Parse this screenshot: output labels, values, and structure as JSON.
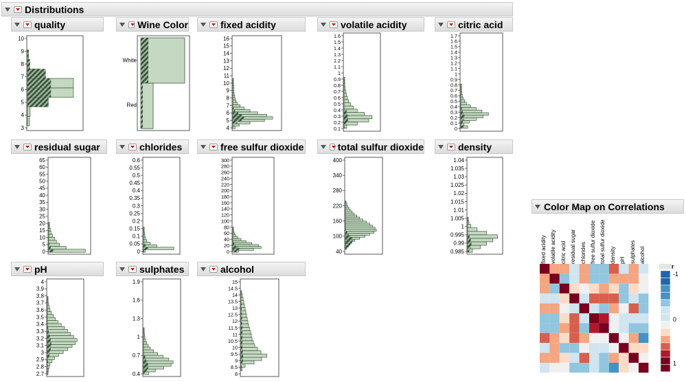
{
  "outline_title": "Distributions",
  "panels": [
    {
      "id": "quality",
      "title": "quality",
      "ticks": [
        "10",
        "9",
        "8",
        "7",
        "6",
        "5",
        "4",
        "3"
      ]
    },
    {
      "id": "wine",
      "title": "Wine Color",
      "cats": [
        "White",
        "Red"
      ]
    },
    {
      "id": "fixed",
      "title": "fixed acidity",
      "ticks": [
        "16",
        "15",
        "14",
        "13",
        "12",
        "11",
        "10",
        "9",
        "8",
        "7",
        "6",
        "5",
        "4"
      ]
    },
    {
      "id": "volatile",
      "title": "volatile acidity",
      "ticks": [
        "1.6",
        "1.5",
        "1.4",
        "1.3",
        "1.2",
        "1.1",
        "1",
        "0.9",
        "0.8",
        "0.7",
        "0.6",
        "0.5",
        "0.4",
        "0.3",
        "0.2",
        "0.1"
      ]
    },
    {
      "id": "citric",
      "title": "citric acid",
      "ticks": [
        "1.7",
        "1.6",
        "1.5",
        "1.4",
        "1.3",
        "1.2",
        "1.1",
        "1",
        "0.9",
        "0.8",
        "0.7",
        "0.6",
        "0.5",
        "0.4",
        "0.3",
        "0.2",
        "0.1",
        "0"
      ]
    },
    {
      "id": "sugar",
      "title": "residual sugar",
      "ticks": [
        "65",
        "60",
        "55",
        "50",
        "45",
        "40",
        "35",
        "30",
        "25",
        "20",
        "15",
        "10",
        "5",
        "0"
      ]
    },
    {
      "id": "chlorides",
      "title": "chlorides",
      "ticks": [
        "0.6",
        "0.55",
        "0.5",
        "0.45",
        "0.4",
        "0.35",
        "0.3",
        "0.25",
        "0.2",
        "0.15",
        "0.1",
        "0.05",
        "0"
      ]
    },
    {
      "id": "freeso2",
      "title": "free sulfur dioxide",
      "ticks": [
        "300",
        "280",
        "260",
        "240",
        "220",
        "200",
        "180",
        "160",
        "140",
        "120",
        "100",
        "80",
        "60",
        "40",
        "20",
        "0"
      ]
    },
    {
      "id": "totalso2",
      "title": "total sulfur dioxide",
      "ticks": [
        "400",
        "340",
        "280",
        "220",
        "160",
        "100",
        "40"
      ]
    },
    {
      "id": "density",
      "title": "density",
      "ticks": [
        "1.04",
        "1.035",
        "1.03",
        "1.025",
        "1.02",
        "1.015",
        "1.01",
        "1.005",
        "1",
        "0.995",
        "0.99",
        "0.985"
      ]
    },
    {
      "id": "ph",
      "title": "pH",
      "ticks": [
        "4",
        "3.9",
        "3.8",
        "3.7",
        "3.6",
        "3.5",
        "3.4",
        "3.3",
        "3.2",
        "3.1",
        "3",
        "2.9",
        "2.8",
        "2.7"
      ]
    },
    {
      "id": "sulphates",
      "title": "sulphates",
      "ticks": [
        "1.9",
        "1.6",
        "1.3",
        "1",
        "0.7",
        "0.4"
      ]
    },
    {
      "id": "alcohol",
      "title": "alcohol",
      "ticks": [
        "15",
        "14.5",
        "14",
        "13.5",
        "13",
        "12.5",
        "12",
        "11.5",
        "11",
        "10.5",
        "10",
        "9.5",
        "9",
        "8.5",
        "8"
      ]
    }
  ],
  "color_map": {
    "title": "Color Map on Correlations",
    "variables": [
      "fixed acidity",
      "volatile acidity",
      "citric acid",
      "residual sugar",
      "chlorides",
      "free sulfur dioxide",
      "total sulfur dioxide",
      "density",
      "pH",
      "sulphates",
      "alcohol"
    ],
    "legend_title": "r",
    "legend_labels": [
      "-1",
      "0",
      "1"
    ]
  },
  "colors": {
    "bar_fill": "#c5d8c2",
    "bar_stroke": "#3c5a3a",
    "hatch_dark": "#35503a",
    "frame": "#555555"
  }
}
